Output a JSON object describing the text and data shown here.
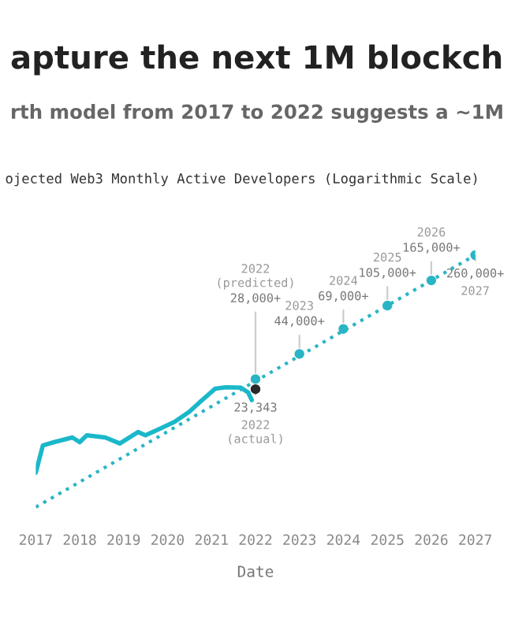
{
  "chart_data": {
    "type": "line",
    "title": "apture the next 1M blockch",
    "subtitle": "rth model from 2017 to 2022 suggests a ~1M",
    "annotations": [
      "ojected Web3 Monthly Active Developers (Logarithmic Scale)",
      "2022\n(predicted)",
      "2023",
      "2024",
      "2025",
      "2026",
      "2027",
      "2022\n(actual)"
    ],
    "xlabel": "Date",
    "log": "y",
    "tick_labels": "x",
    "xlim": [
      "2017",
      "2027"
    ],
    "xticks": [
      {
        "value": "2017",
        "label": "2017"
      },
      {
        "value": "2018",
        "label": "2018"
      },
      {
        "value": "2019",
        "label": "2019"
      },
      {
        "value": "2020",
        "label": "2020"
      },
      {
        "value": "2021",
        "label": "2021"
      },
      {
        "value": "2022",
        "label": "2022"
      },
      {
        "value": "2023",
        "label": "2023"
      },
      {
        "value": "2024",
        "label": "2024"
      },
      {
        "value": "2025",
        "label": "2025"
      },
      {
        "value": "2026",
        "label": "2026"
      },
      {
        "value": "2027",
        "label": "2027"
      }
    ],
    "series": [
      {
        "color": "#1ab8c9",
        "line_style": "solid",
        "marker": "none",
        "x": [
          "2017-01",
          "2017-03",
          "2017-06",
          "2017-11",
          "2018-01",
          "2018-03",
          "2018-08",
          "2018-12",
          "2019-05",
          "2019-07",
          "2019-11",
          "2020-03",
          "2020-07",
          "2020-10",
          "2021-02",
          "2021-05",
          "2021-09",
          "2021-11",
          "2021-12"
        ],
        "values": [
          5200,
          8500,
          9000,
          9800,
          9000,
          10200,
          9800,
          8800,
          10800,
          10200,
          11500,
          13000,
          15600,
          18700,
          23600,
          24200,
          24000,
          22000,
          19200
        ]
      },
      {
        "type": "line",
        "color": "#2ab5c5",
        "line_style": "dotted",
        "marker": "none",
        "x": [
          "2017-01",
          "2027-01"
        ],
        "values": [
          2800,
          260000
        ]
      },
      {
        "type": "scatter",
        "color": "#2ab5c5",
        "marker": "circle",
        "x": [
          "2022-01",
          "2023-01",
          "2024-01",
          "2025-01",
          "2026-01",
          "2027-01"
        ],
        "values": [
          28000,
          44000,
          69000,
          105000,
          165000,
          260000
        ],
        "value_labels": [
          "28,000+",
          "44,000+",
          "69,000+",
          "105,000+",
          "165,000+",
          "260,000+"
        ]
      },
      {
        "type": "scatter",
        "color": "#2a2a2a",
        "marker": "circle",
        "x": [
          "2022-01"
        ],
        "values": [
          23343
        ],
        "value_labels": [
          "23,343"
        ]
      }
    ]
  }
}
